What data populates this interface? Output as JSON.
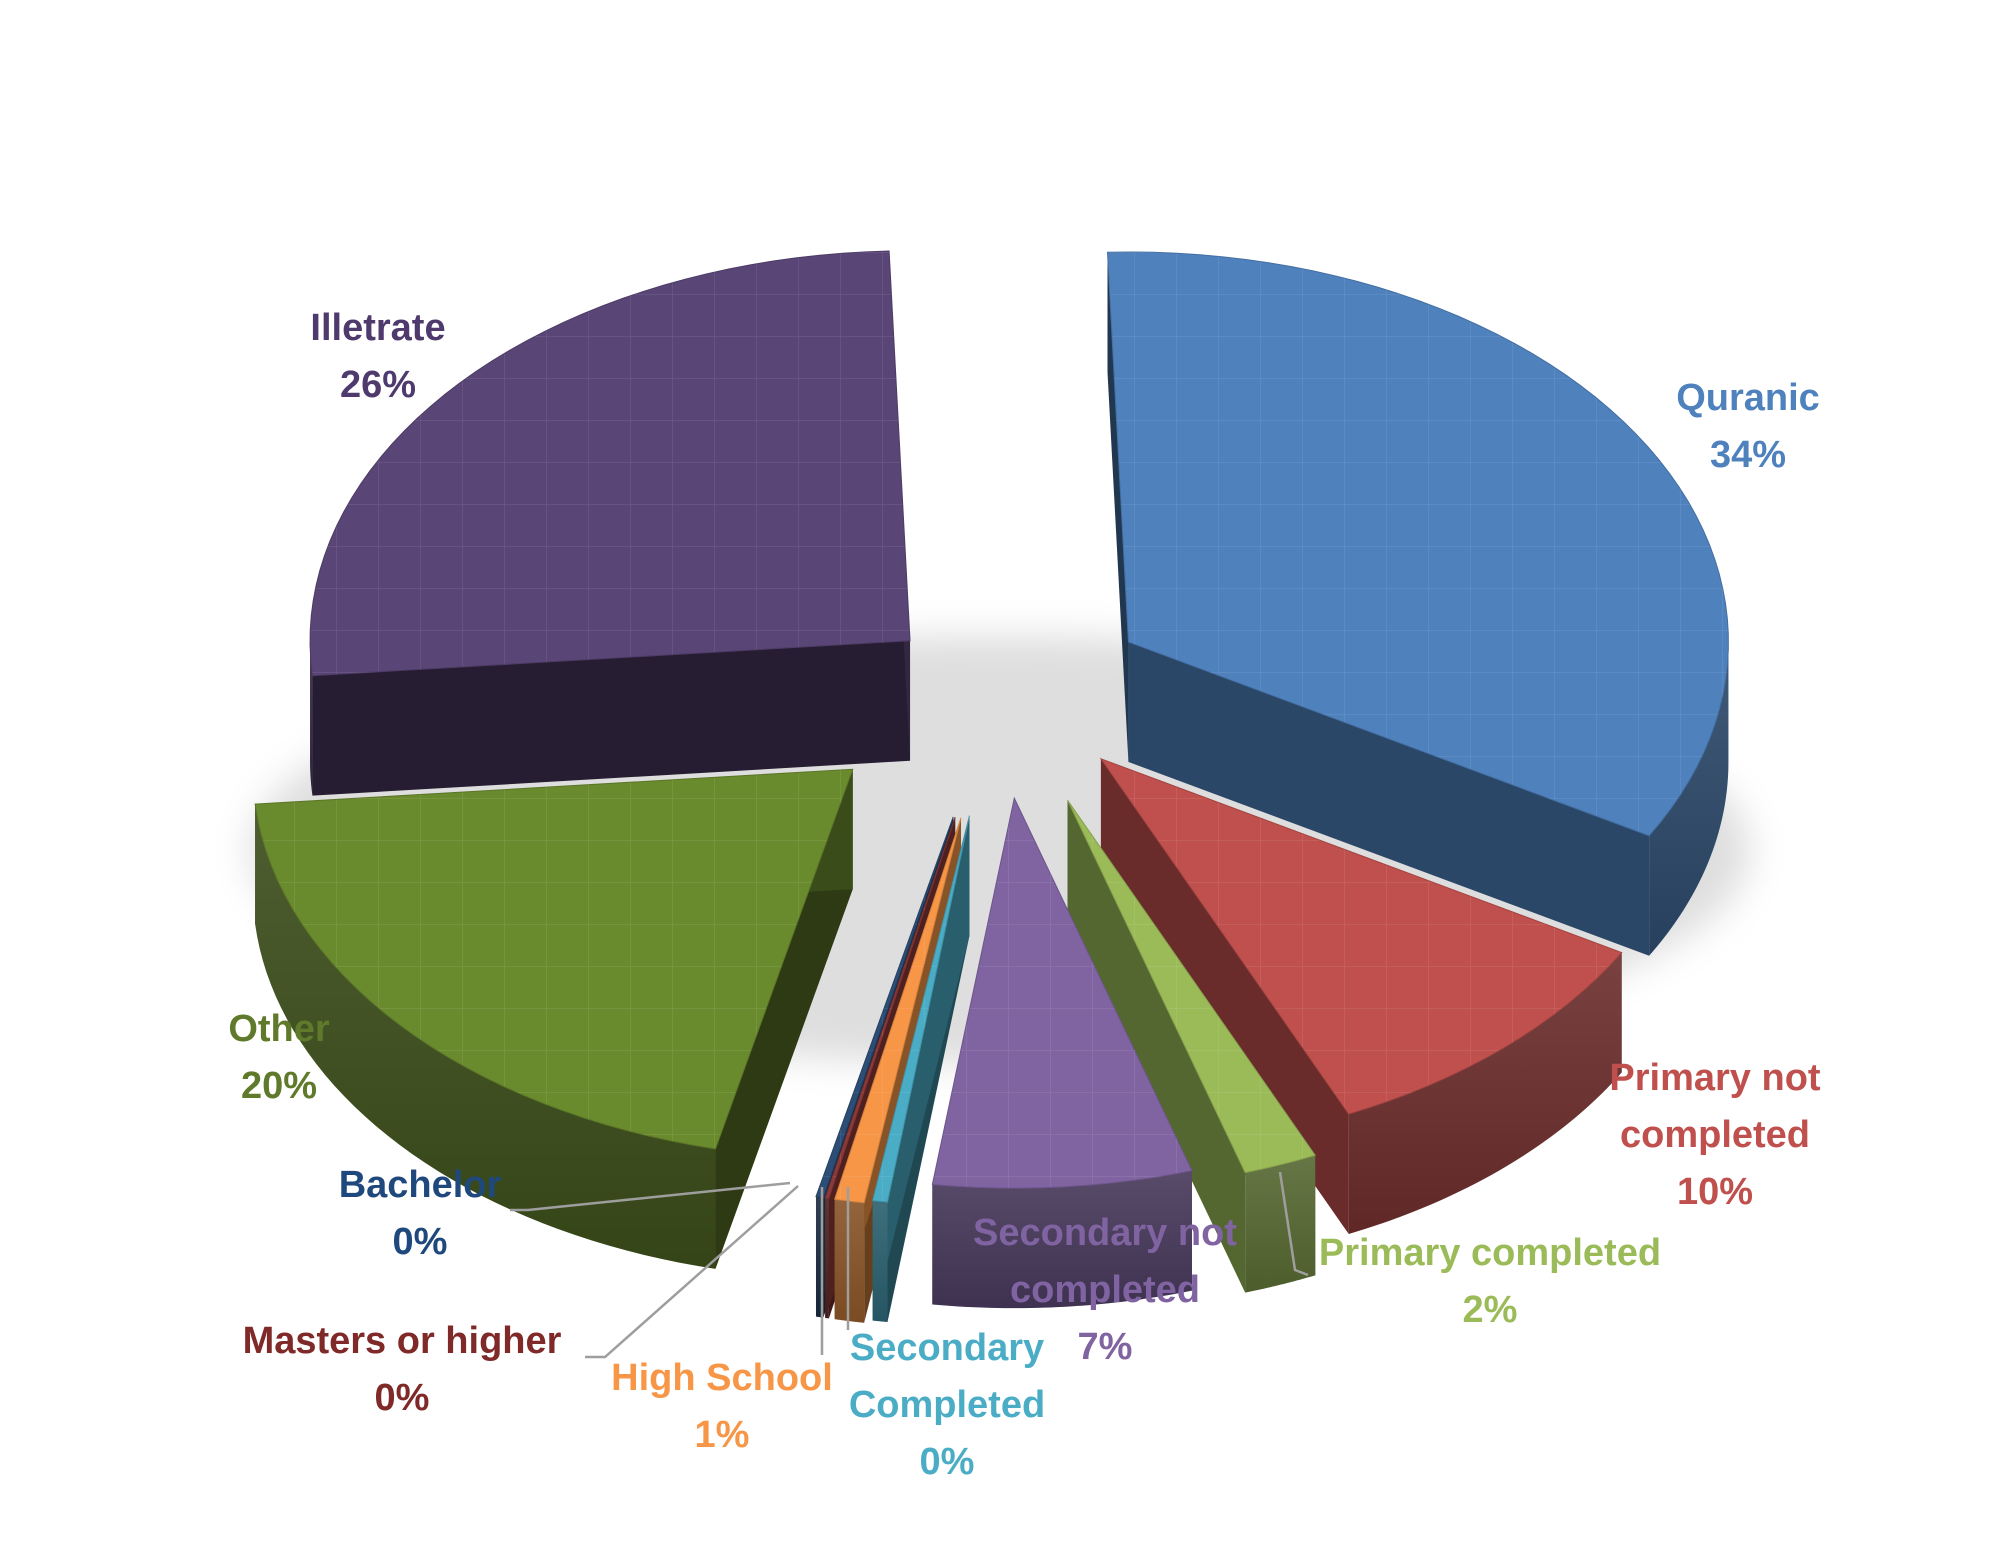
{
  "chart_data": {
    "type": "pie",
    "title": "",
    "exploded": true,
    "three_d": true,
    "slices": [
      {
        "name": "Quranic",
        "label_lines": [
          "Quranic",
          "34%"
        ],
        "value": 34,
        "color": "#4f81bd"
      },
      {
        "name": "Primary not completed",
        "label_lines": [
          "Primary not",
          "completed",
          "10%"
        ],
        "value": 10,
        "color": "#c0504d"
      },
      {
        "name": "Primary completed",
        "label_lines": [
          "Primary completed",
          "2%"
        ],
        "value": 2,
        "color": "#9bbb59"
      },
      {
        "name": "Secondary not completed",
        "label_lines": [
          "Secondary not",
          "completed",
          "7%"
        ],
        "value": 7,
        "color": "#8064a2"
      },
      {
        "name": "Secondary Completed",
        "label_lines": [
          "Secondary",
          "Completed",
          "0%"
        ],
        "value": 0.4,
        "color": "#4bacc6"
      },
      {
        "name": "High School",
        "label_lines": [
          "High School",
          "1%"
        ],
        "value": 0.8,
        "color": "#f79646"
      },
      {
        "name": "Masters or higher",
        "label_lines": [
          "Masters or higher",
          "0%"
        ],
        "value": 0.1,
        "color": "#8e3a38"
      },
      {
        "name": "Bachelor",
        "label_lines": [
          "Bachelor",
          "0%"
        ],
        "value": 0.2,
        "color": "#2c4d75"
      },
      {
        "name": "Other",
        "label_lines": [
          "Other",
          "20%"
        ],
        "value": 20,
        "color": "#6a8a2e"
      },
      {
        "name": "Illetrate",
        "label_lines": [
          "Illetrate",
          "26%"
        ],
        "value": 26,
        "color": "#5a4577"
      }
    ],
    "label_colors": {
      "Quranic": "#4f81bd",
      "Primary not completed": "#c0504d",
      "Primary completed": "#9bbb59",
      "Secondary not completed": "#8064a2",
      "Secondary Completed": "#4bacc6",
      "High School": "#f79646",
      "Masters or higher": "#7f2a28",
      "Bachelor": "#1f497d",
      "Other": "#5f7a2a",
      "Illetrate": "#4f3a6e"
    }
  }
}
